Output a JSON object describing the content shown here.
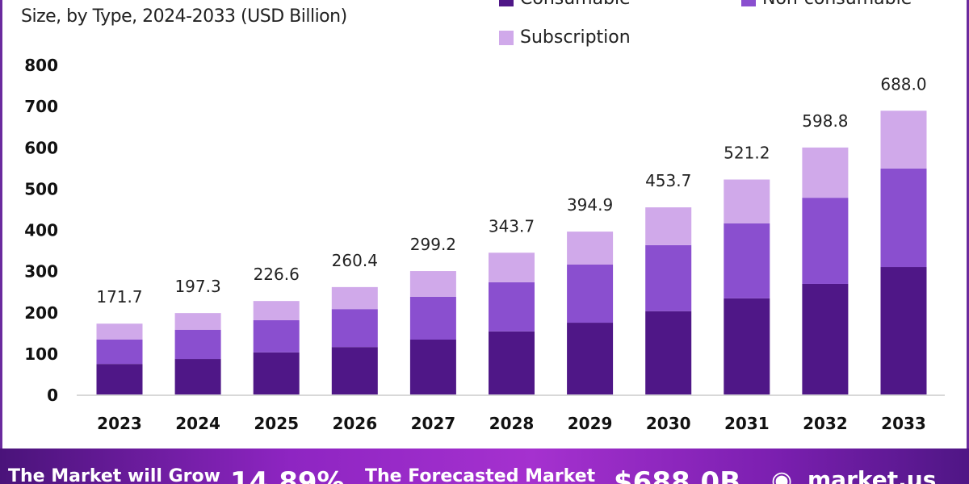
{
  "chart_data": {
    "type": "bar",
    "stacked": true,
    "title": "",
    "subtitle": "Size, by Type, 2024-2033 (USD Billion)",
    "xlabel": "",
    "ylabel": "",
    "ylim": [
      0,
      800
    ],
    "yticks": [
      "0",
      "100",
      "200",
      "300",
      "400",
      "500",
      "600",
      "700",
      "800"
    ],
    "grid": false,
    "legend_position": "top-right",
    "categories": [
      "2023",
      "2024",
      "2025",
      "2026",
      "2027",
      "2028",
      "2029",
      "2030",
      "2031",
      "2032",
      "2033"
    ],
    "totals": [
      "171.7",
      "197.3",
      "226.6",
      "260.4",
      "299.2",
      "343.7",
      "394.9",
      "453.7",
      "521.2",
      "598.8",
      "688.0"
    ],
    "series": [
      {
        "name": "Consumable",
        "color": "#4f1787",
        "values": [
          74,
          86,
          102,
          115,
          133,
          153,
          174,
          202,
          233,
          268,
          309
        ]
      },
      {
        "name": "Non-consumable",
        "color": "#8a4fcf",
        "values": [
          59,
          71,
          78,
          92,
          104,
          119,
          141,
          160,
          182,
          209,
          239
        ]
      },
      {
        "name": "Subscription",
        "color": "#d0a9ea",
        "values": [
          38.7,
          40.3,
          46.6,
          53.4,
          62.2,
          71.7,
          79.9,
          91.7,
          106.2,
          121.8,
          140.0
        ]
      }
    ]
  },
  "banner": {
    "grow_label": "The Market will Grow",
    "cagr": "14.89%",
    "forecast_label": "The Forecasted Market",
    "forecast_value": "$688.0B",
    "brand": "market.us"
  }
}
